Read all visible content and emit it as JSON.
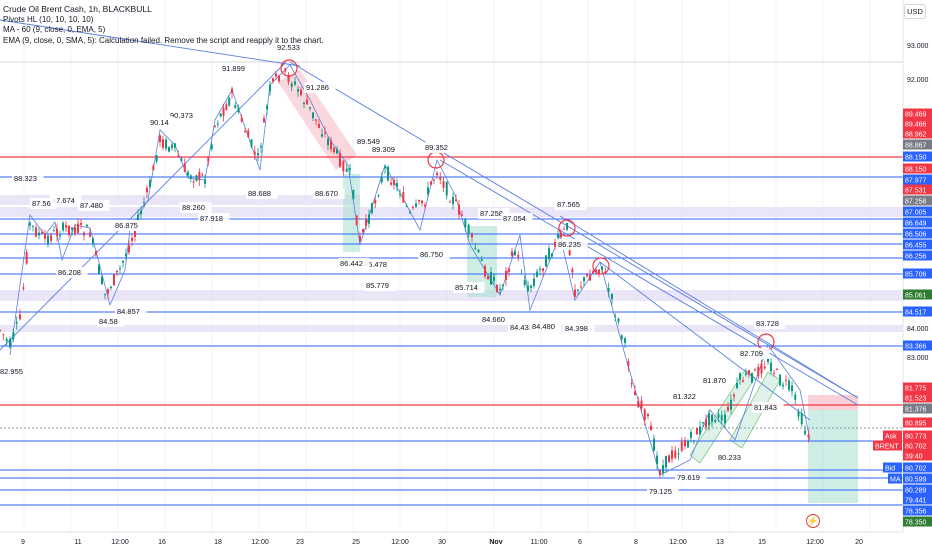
{
  "legend": {
    "title": "Crude Oil Brent Cash, 1h, BLACKBULL",
    "pivots": "Pivots HL (10, 10, 10, 10)",
    "ma": "MA - 60 (9, close, 0, EMA, 5)",
    "ema": "EMA (9, close, 0, SMA, 5): Calculation failed. Remove the script and reapply it to the chart."
  },
  "currency": "USD",
  "price_axis": {
    "ticks": [
      "93.000",
      "92.000",
      "84.000",
      "83.000"
    ],
    "tags": [
      {
        "text": "89.469",
        "color": "#f23645"
      },
      {
        "text": "89.466",
        "color": "#f23645"
      },
      {
        "text": "88.962",
        "color": "#f23645"
      },
      {
        "text": "88.867",
        "color": "#787b86"
      },
      {
        "text": "88.150",
        "color": "#2962ff"
      },
      {
        "text": "88.150",
        "color": "#f23645"
      },
      {
        "text": "87.977",
        "color": "#2962ff"
      },
      {
        "text": "87.531",
        "color": "#f23645"
      },
      {
        "text": "87.258",
        "color": "#787b86"
      },
      {
        "text": "87.005",
        "color": "#2962ff"
      },
      {
        "text": "86.649",
        "color": "#2962ff"
      },
      {
        "text": "86.506",
        "color": "#2962ff"
      },
      {
        "text": "86.455",
        "color": "#2962ff"
      },
      {
        "text": "86.256",
        "color": "#2962ff"
      },
      {
        "text": "85.706",
        "color": "#2962ff"
      },
      {
        "text": "85.061",
        "color": "#2e7d32"
      },
      {
        "text": "84.517",
        "color": "#2962ff"
      },
      {
        "text": "83.366",
        "color": "#2962ff"
      },
      {
        "text": "81.775",
        "color": "#f23645"
      },
      {
        "text": "81.523",
        "color": "#f23645"
      },
      {
        "text": "81.376",
        "color": "#787b86"
      },
      {
        "text": "80.895",
        "color": "#f23645"
      },
      {
        "text": "80.773",
        "color": "#f23645"
      },
      {
        "text": "80.702",
        "color": "#f23645"
      },
      {
        "text": "39:40",
        "color": "#f23645"
      },
      {
        "text": "80.702",
        "color": "#2962ff"
      },
      {
        "text": "80.599",
        "color": "#2962ff"
      },
      {
        "text": "80.289",
        "color": "#2962ff"
      },
      {
        "text": "79.441",
        "color": "#2962ff"
      },
      {
        "text": "78.356",
        "color": "#2962ff"
      },
      {
        "text": "78.350",
        "color": "#2e7d32"
      }
    ],
    "side_labels": [
      {
        "text": "Ask",
        "color": "#f23645"
      },
      {
        "text": "BRENT",
        "color": "#f23645"
      },
      {
        "text": "Bid",
        "color": "#2962ff"
      },
      {
        "text": "MA",
        "color": "#2962ff"
      }
    ]
  },
  "time_axis": [
    "9",
    "11",
    "12:00",
    "16",
    "18",
    "12:00",
    "23",
    "25",
    "12:00",
    "30",
    "Nov",
    "11:00",
    "6",
    "8",
    "12:00",
    "13",
    "15",
    "12:00",
    "20"
  ],
  "pivot_labels": [
    "92.533",
    "91.899",
    "91.286",
    "90.373",
    "90.14",
    "89.549",
    "89.352",
    "89.309",
    "88.323",
    "88.688",
    "88.670",
    "88.260",
    "87.918",
    "87.674",
    "87.56",
    "87.480",
    "87.565",
    "87.258",
    "87.054",
    "86.875",
    "86.750",
    "86.478",
    "86.442",
    "86.235",
    "86.208",
    "85.779",
    "85.714",
    "84.857",
    "84.58",
    "84.660",
    "84.431",
    "84.480",
    "84.398",
    "83.728",
    "82.955",
    "82.709",
    "81.870",
    "81.843",
    "81.322",
    "80.233",
    "79.619",
    "79.125"
  ]
}
